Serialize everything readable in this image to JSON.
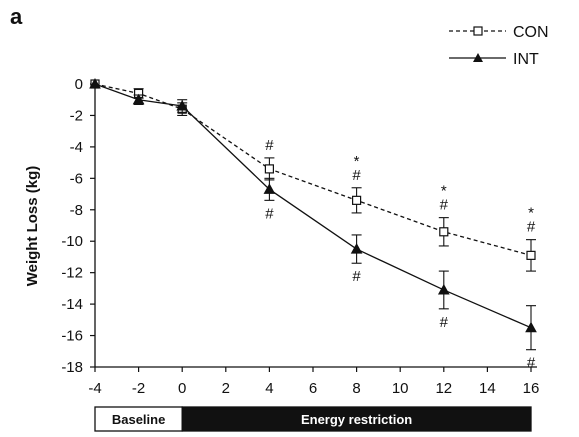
{
  "figure": {
    "panel_letter": "a"
  },
  "chart_data": {
    "type": "line",
    "title": "",
    "xlabel": "",
    "ylabel": "Weight Loss (kg)",
    "xlim": [
      -4,
      16
    ],
    "ylim": [
      -18,
      0
    ],
    "x_ticks": [
      -4,
      -2,
      0,
      2,
      4,
      6,
      8,
      10,
      12,
      14,
      16
    ],
    "y_ticks": [
      0,
      -2,
      -4,
      -6,
      -8,
      -10,
      -12,
      -14,
      -16,
      -18
    ],
    "legend_position": "top-right",
    "series": [
      {
        "name": "CON",
        "style": "dashed",
        "marker": "open-square",
        "color": "#111111",
        "x": [
          -4,
          -2,
          0,
          4,
          8,
          12,
          16
        ],
        "y": [
          0,
          -0.6,
          -1.6,
          -5.4,
          -7.4,
          -9.4,
          -10.9
        ],
        "error": [
          0,
          0.3,
          0.4,
          0.7,
          0.8,
          0.9,
          1.0
        ]
      },
      {
        "name": "INT",
        "style": "solid",
        "marker": "filled-triangle",
        "color": "#111111",
        "x": [
          -4,
          -2,
          0,
          4,
          8,
          12,
          16
        ],
        "y": [
          0,
          -1.0,
          -1.4,
          -6.7,
          -10.5,
          -13.1,
          -15.5
        ],
        "error": [
          0,
          0.3,
          0.4,
          0.7,
          0.9,
          1.2,
          1.4
        ]
      }
    ],
    "annotations": [
      {
        "x": 4,
        "text": "#",
        "anchor": "above-con"
      },
      {
        "x": 4,
        "text": "#",
        "anchor": "below-int"
      },
      {
        "x": 8,
        "text": "*",
        "anchor": "above-con-2"
      },
      {
        "x": 8,
        "text": "#",
        "anchor": "above-con"
      },
      {
        "x": 8,
        "text": "#",
        "anchor": "below-int"
      },
      {
        "x": 12,
        "text": "*",
        "anchor": "above-con-2"
      },
      {
        "x": 12,
        "text": "#",
        "anchor": "above-con"
      },
      {
        "x": 12,
        "text": "#",
        "anchor": "below-int"
      },
      {
        "x": 16,
        "text": "*",
        "anchor": "above-con-2"
      },
      {
        "x": 16,
        "text": "#",
        "anchor": "above-con"
      },
      {
        "x": 16,
        "text": "#",
        "anchor": "below-int"
      }
    ],
    "phases": [
      {
        "label": "Baseline",
        "x_start": -4,
        "x_end": 0,
        "fill": "#ffffff",
        "text_color": "#111111"
      },
      {
        "label": "Energy restriction",
        "x_start": 0,
        "x_end": 16,
        "fill": "#111111",
        "text_color": "#ffffff"
      }
    ]
  }
}
